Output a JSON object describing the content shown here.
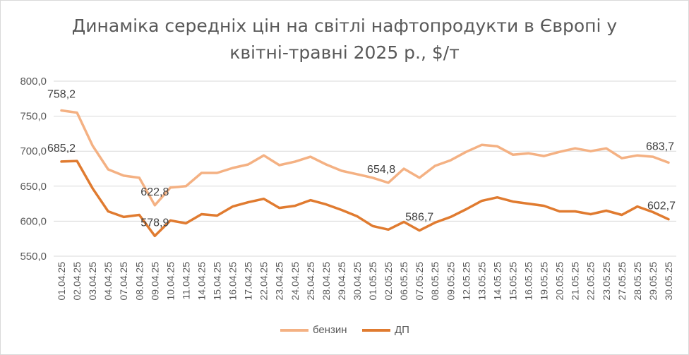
{
  "title_line1": "Динаміка середніх цін на світлі нафтопродукти в Європі у",
  "title_line2": "квітні-травні 2025 р., $/т",
  "colors": {
    "benzin": "#f4b183",
    "dp": "#e07b30",
    "axis": "#595959",
    "grid": "#d9d9d9"
  },
  "chart_data": {
    "type": "line",
    "x": [
      "01.04.25",
      "02.04.25",
      "03.04.25",
      "04.04.25",
      "07.04.25",
      "08.04.25",
      "09.04.25",
      "10.04.25",
      "11.04.25",
      "14.04.25",
      "15.04.25",
      "16.04.25",
      "17.04.25",
      "22.04.25",
      "23.04.25",
      "24.04.25",
      "25.04.25",
      "28.04.25",
      "29.04.25",
      "30.04.25",
      "01.05.25",
      "02.05.25",
      "06.05.25",
      "07.05.25",
      "08.05.25",
      "09.05.25",
      "12.05.25",
      "13.05.25",
      "14.05.25",
      "15.05.25",
      "16.05.25",
      "19.05.25",
      "20.05.25",
      "21.05.25",
      "22.05.25",
      "23.05.25",
      "27.05.25",
      "28.05.25",
      "29.05.25",
      "30.05.25"
    ],
    "ylim": [
      550,
      800
    ],
    "yticks": [
      "550,0",
      "600,0",
      "650,0",
      "700,0",
      "750,0",
      "800,0"
    ],
    "ytick_values": [
      550,
      600,
      650,
      700,
      750,
      800
    ],
    "grid": true,
    "legend_position": "bottom",
    "series": [
      {
        "name": "бензин",
        "color": "#f4b183",
        "values": [
          758.2,
          755,
          708,
          674,
          665,
          662,
          622.8,
          648,
          650,
          669,
          669,
          676,
          681,
          694,
          680,
          685,
          692,
          681,
          672,
          667,
          662,
          654.8,
          675,
          662,
          679,
          687,
          699,
          709,
          707,
          695,
          697,
          693,
          699,
          704,
          700,
          704,
          690,
          694,
          692,
          683.7
        ],
        "labels": {
          "0": "758,2",
          "6": "622,8",
          "21": "654,8",
          "39": "683,7"
        }
      },
      {
        "name": "ДП",
        "color": "#e07b30",
        "values": [
          685.2,
          686,
          647,
          614,
          606,
          609,
          578.9,
          601,
          597,
          610,
          608,
          621,
          627,
          632,
          619,
          622,
          630,
          624,
          616,
          607,
          593,
          588,
          599,
          586.7,
          598,
          606,
          617,
          629,
          634,
          628,
          625,
          622,
          614,
          614,
          610,
          615,
          609,
          621,
          613,
          602.7
        ],
        "labels": {
          "0": "685,2",
          "6": "578,9",
          "23": "586,7",
          "39": "602,7"
        }
      }
    ]
  }
}
